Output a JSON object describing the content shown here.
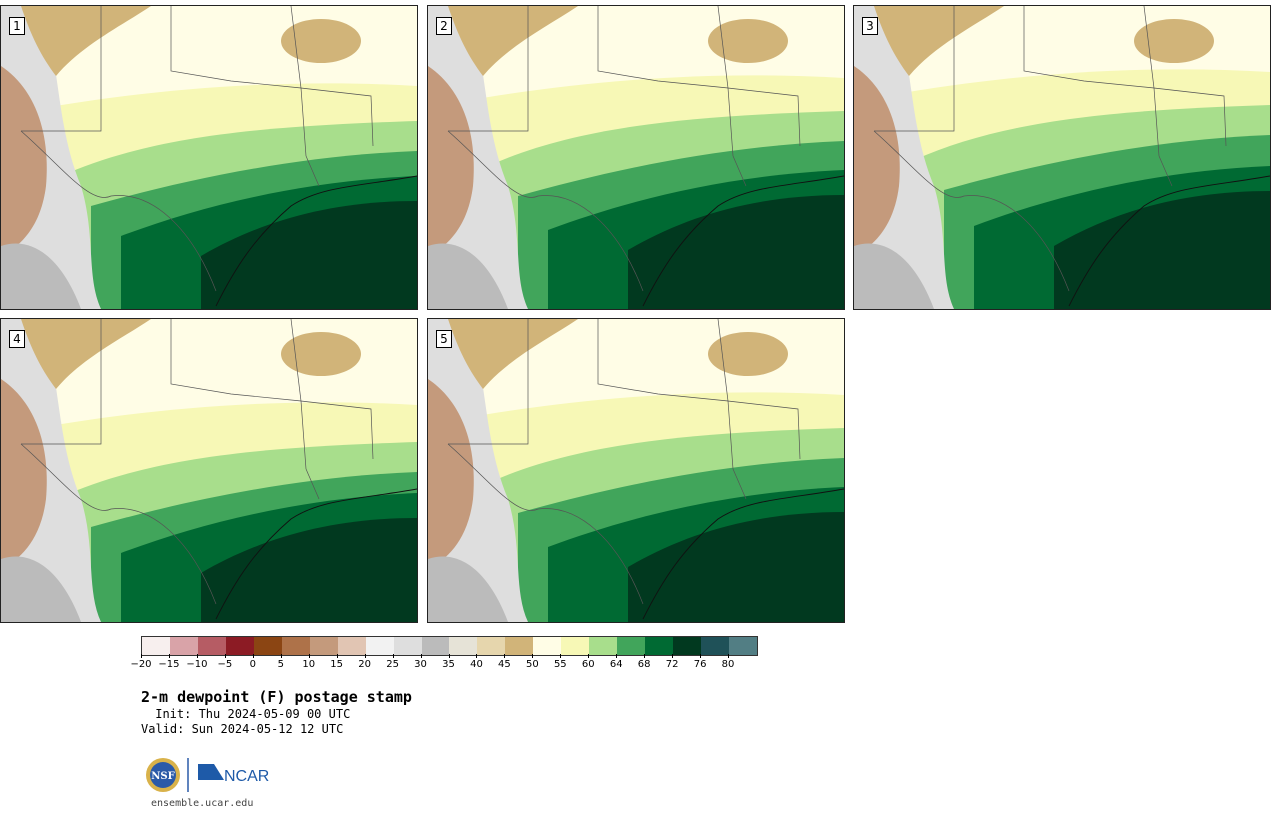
{
  "panels": [
    {
      "label": "1"
    },
    {
      "label": "2"
    },
    {
      "label": "3"
    },
    {
      "label": "4"
    },
    {
      "label": "5"
    }
  ],
  "colorbar": {
    "colors": [
      "#f7efee",
      "#d9a3a8",
      "#b65c64",
      "#8c1b24",
      "#8b4513",
      "#ae7249",
      "#c49a7c",
      "#e1c5b3",
      "#f2f2f2",
      "#dedede",
      "#bbbbbb",
      "#e6e3d7",
      "#e6d6ad",
      "#d1b479",
      "#fffde6",
      "#f7f8b6",
      "#a8de8c",
      "#41a55b",
      "#006a33",
      "#01391f",
      "#1f5158",
      "#527e84"
    ],
    "tick_labels": [
      "−20",
      "−15",
      "−10",
      "−5",
      "0",
      "5",
      "10",
      "15",
      "20",
      "25",
      "30",
      "35",
      "40",
      "45",
      "50",
      "55",
      "60",
      "64",
      "68",
      "72",
      "76",
      "80"
    ]
  },
  "title": "2-m dewpoint (F) postage stamp",
  "init": " Init: Thu 2024-05-09 00 UTC",
  "valid": "Valid: Sun 2024-05-12 12 UTC",
  "logos": {
    "nsf_text": "NSF",
    "ncar_text": "NCAR"
  },
  "website": "ensemble.ucar.edu"
}
